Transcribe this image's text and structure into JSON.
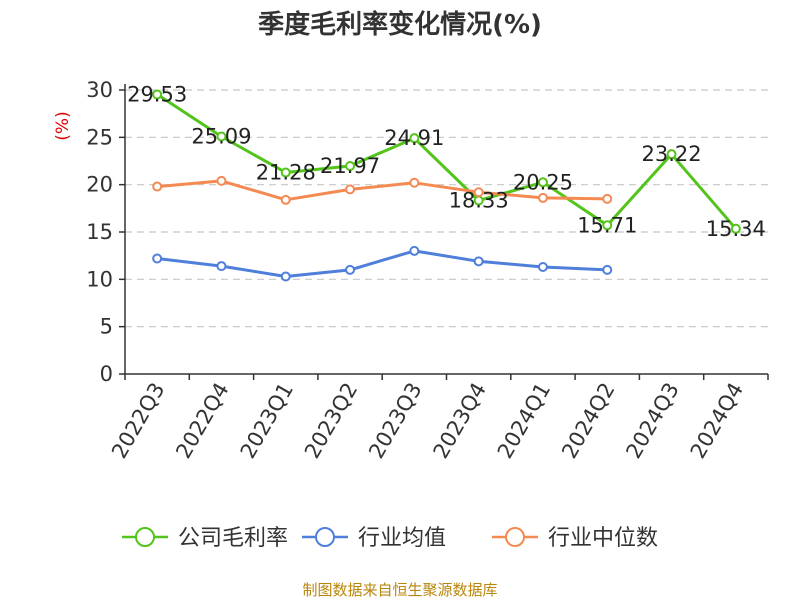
{
  "title": "季度毛利率变化情况(%)",
  "source_text": "制图数据来自恒生聚源数据库",
  "chart_data": {
    "type": "line",
    "title": "季度毛利率变化情况(%)",
    "ylabel": "(%)",
    "ylim": [
      0,
      30
    ],
    "yticks": [
      0,
      5,
      10,
      15,
      20,
      25,
      30
    ],
    "grid": true,
    "legend_position": "bottom",
    "categories": [
      "2022Q3",
      "2022Q4",
      "2023Q1",
      "2023Q2",
      "2023Q3",
      "2023Q4",
      "2024Q1",
      "2024Q2",
      "2024Q3",
      "2024Q4"
    ],
    "series": [
      {
        "name": "公司毛利率",
        "color": "#52c41a",
        "values": [
          29.53,
          25.09,
          21.28,
          21.97,
          24.91,
          18.33,
          20.25,
          15.71,
          23.22,
          15.34
        ],
        "labels": [
          "29.53",
          "25.09",
          "21.28",
          "21.97",
          "24.91",
          "18.33",
          "20.25",
          "15.71",
          "23.22",
          "15.34"
        ],
        "show_labels": true
      },
      {
        "name": "行业均值",
        "color": "#4f7fdb",
        "values": [
          12.2,
          11.4,
          10.3,
          11.0,
          13.0,
          11.9,
          11.3,
          11.0,
          null,
          null
        ],
        "show_labels": false
      },
      {
        "name": "行业中位数",
        "color": "#f48a52",
        "values": [
          19.8,
          20.4,
          18.4,
          19.5,
          20.2,
          19.2,
          18.6,
          18.5,
          null,
          null
        ],
        "show_labels": false
      }
    ]
  }
}
